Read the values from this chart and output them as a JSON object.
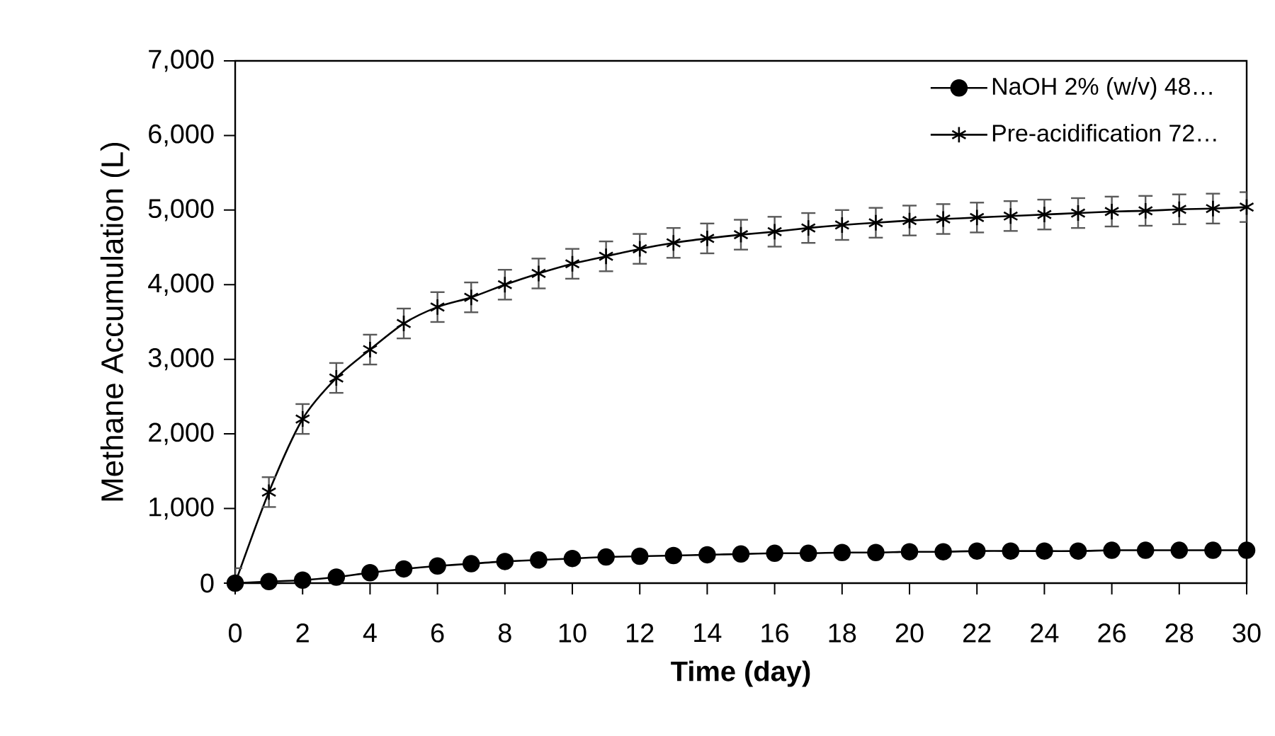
{
  "chart_data": {
    "type": "line",
    "xlabel": "Time (day)",
    "ylabel": "Methane Accumulation (L)",
    "x": [
      0,
      1,
      2,
      3,
      4,
      5,
      6,
      7,
      8,
      9,
      10,
      11,
      12,
      13,
      14,
      15,
      16,
      17,
      18,
      19,
      20,
      21,
      22,
      23,
      24,
      25,
      26,
      27,
      28,
      29,
      30
    ],
    "series": [
      {
        "name": "NaOH 2% (w/v) 48…",
        "color": "#000000",
        "marker": "circle",
        "values": [
          0,
          20,
          40,
          80,
          140,
          190,
          230,
          260,
          290,
          310,
          330,
          350,
          360,
          370,
          380,
          390,
          400,
          400,
          410,
          410,
          420,
          420,
          430,
          430,
          430,
          430,
          440,
          440,
          440,
          440,
          440
        ]
      },
      {
        "name": "Pre-acidification 72…",
        "color": "#000000",
        "marker": "cross",
        "values": [
          0,
          1220,
          2200,
          2750,
          3130,
          3480,
          3700,
          3830,
          4000,
          4150,
          4280,
          4380,
          4480,
          4560,
          4620,
          4670,
          4710,
          4760,
          4800,
          4830,
          4860,
          4880,
          4900,
          4920,
          4940,
          4960,
          4980,
          4990,
          5010,
          5020,
          5040
        ],
        "errors": [
          200,
          200,
          200,
          200,
          200,
          200,
          200,
          200,
          200,
          200,
          200,
          200,
          200,
          200,
          200,
          200,
          200,
          200,
          200,
          200,
          200,
          200,
          200,
          200,
          200,
          200,
          200,
          200,
          200,
          200,
          200
        ]
      }
    ],
    "xlim": [
      0,
      30
    ],
    "xticks": [
      0,
      2,
      4,
      6,
      8,
      10,
      12,
      14,
      16,
      18,
      20,
      22,
      24,
      26,
      28,
      30
    ],
    "ylim": [
      0,
      7000
    ],
    "yticks": [
      0,
      {
        "value": 1000,
        "label": "1,000"
      },
      {
        "value": 2000,
        "label": "2,000"
      },
      {
        "value": 3000,
        "label": "3,000"
      },
      {
        "value": 4000,
        "label": "4,000"
      },
      {
        "value": 5000,
        "label": "5,000"
      },
      {
        "value": 6000,
        "label": "6,000"
      },
      {
        "value": 7000,
        "label": "7,000"
      }
    ],
    "legend": "top right",
    "grid": false
  }
}
